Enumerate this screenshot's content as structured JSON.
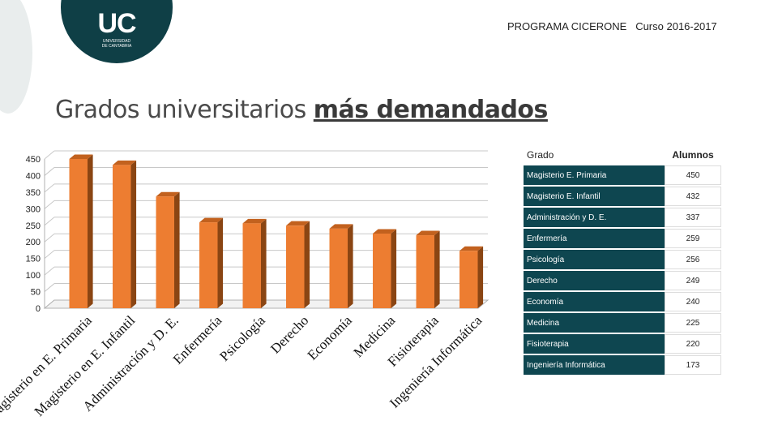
{
  "header": {
    "text": "PROGRAMA CICERONE   Curso 2016-2017"
  },
  "logo": {
    "mark": "UC",
    "subtitle_line1": "UNIVERSIDAD",
    "subtitle_line2": "DE CANTABRIA"
  },
  "title": {
    "plain": "Grados universitarios ",
    "bold": "más demandados"
  },
  "table": {
    "headers": [
      "Grado",
      "Alumnos"
    ],
    "rows": [
      {
        "grado": "Magisterio E. Primaria",
        "alumnos": "450"
      },
      {
        "grado": "Magisterio E. Infantil",
        "alumnos": "432"
      },
      {
        "grado": "Administración y D. E.",
        "alumnos": "337"
      },
      {
        "grado": "Enfermería",
        "alumnos": "259"
      },
      {
        "grado": "Psicología",
        "alumnos": "256"
      },
      {
        "grado": "Derecho",
        "alumnos": "249"
      },
      {
        "grado": "Economía",
        "alumnos": "240"
      },
      {
        "grado": "Medicina",
        "alumnos": "225"
      },
      {
        "grado": "Fisioterapia",
        "alumnos": "220"
      },
      {
        "grado": "Ingeniería  Informática",
        "alumnos": "173"
      }
    ]
  },
  "chart_data": {
    "type": "bar",
    "title": "",
    "xlabel": "",
    "ylabel": "",
    "ylim": [
      0,
      450
    ],
    "yticks": [
      0,
      50,
      100,
      150,
      200,
      250,
      300,
      350,
      400,
      450
    ],
    "categories": [
      "Magisterio en E. Primaria",
      "Magisterio en E. Infantil",
      "Administración y D. E.",
      "Enfermería",
      "Psicología",
      "Derecho",
      "Economía",
      "Medicina",
      "Fisioterapia",
      "Ingeniería Informática"
    ],
    "values": [
      450,
      432,
      337,
      259,
      256,
      249,
      240,
      225,
      220,
      173
    ],
    "grid": true,
    "legend": "none",
    "bar_color": "#ed7d31",
    "bar_side_color": "#8a4513"
  }
}
